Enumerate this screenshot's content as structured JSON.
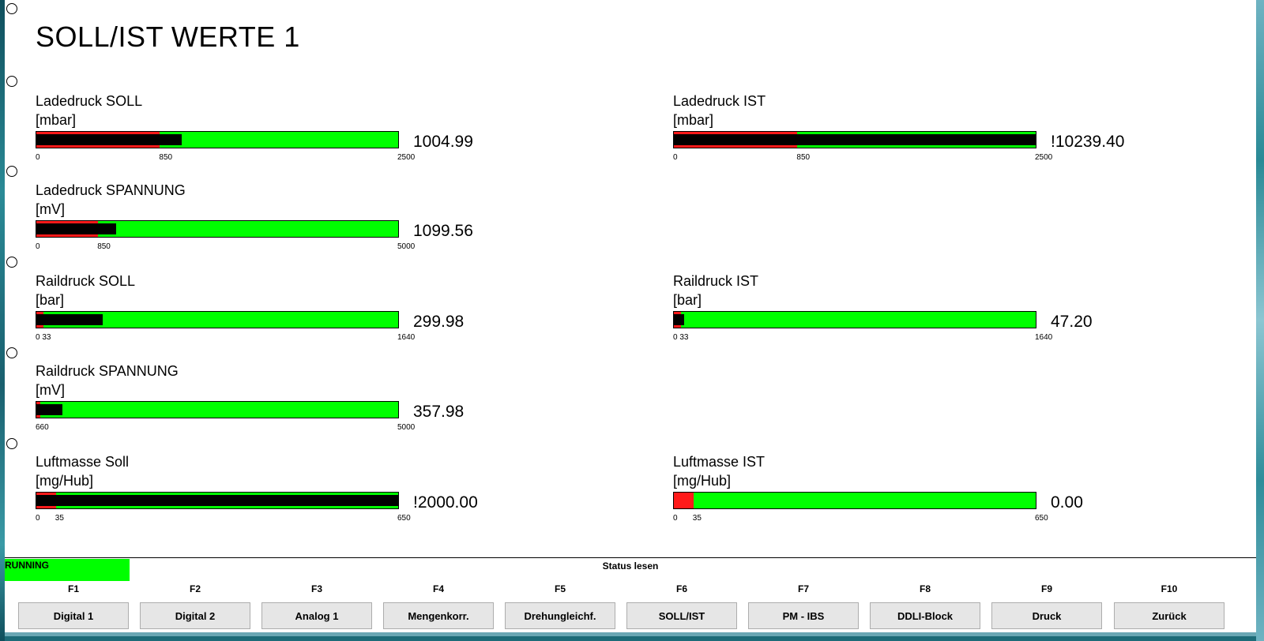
{
  "title": "SOLL/IST WERTE 1",
  "gauges": [
    {
      "label": "Ladedruck SOLL",
      "unit": "[mbar]",
      "value": "1004.99",
      "min": 0,
      "threshold": 850,
      "max": 2500,
      "level": 1004.99,
      "ticks": {
        "min": "0",
        "threshold": "850",
        "max": "2500"
      }
    },
    {
      "label": "Ladedruck IST",
      "unit": "[mbar]",
      "value": "!10239.40",
      "min": 0,
      "threshold": 850,
      "max": 2500,
      "level": 2500,
      "ticks": {
        "min": "0",
        "threshold": "850",
        "max": "2500"
      }
    },
    {
      "label": "Ladedruck SPANNUNG",
      "unit": "[mV]",
      "value": "1099.56",
      "min": 0,
      "threshold": 850,
      "max": 5000,
      "level": 1099.56,
      "ticks": {
        "min": "0",
        "threshold": "850",
        "max": "5000"
      }
    },
    {
      "label": "Raildruck SOLL",
      "unit": "[bar]",
      "value": "299.98",
      "min": 0,
      "threshold": 33,
      "max": 1640,
      "level": 299.98,
      "ticks": {
        "min": "0 33",
        "threshold": "",
        "max": "1640"
      }
    },
    {
      "label": "Raildruck IST",
      "unit": "[bar]",
      "value": "47.20",
      "min": 0,
      "threshold": 33,
      "max": 1640,
      "level": 47.2,
      "ticks": {
        "min": "0 33",
        "threshold": "",
        "max": "1640"
      }
    },
    {
      "label": "Raildruck SPANNUNG",
      "unit": "[mV]",
      "value": "357.98",
      "min": 0,
      "threshold": 60,
      "max": 5000,
      "level": 357.98,
      "ticks": {
        "min": "660",
        "threshold": "",
        "max": "5000"
      }
    },
    {
      "label": "Luftmasse Soll",
      "unit": "[mg/Hub]",
      "value": "!2000.00",
      "min": 0,
      "threshold": 35,
      "max": 650,
      "level": 650,
      "ticks": {
        "min": "0",
        "threshold": "35",
        "max": "650"
      }
    },
    {
      "label": "Luftmasse IST",
      "unit": "[mg/Hub]",
      "value": "0.00",
      "min": 0,
      "threshold": 35,
      "max": 650,
      "level": 0,
      "ticks": {
        "min": "0",
        "threshold": "35",
        "max": "650"
      }
    }
  ],
  "status": {
    "state": "RUNNING",
    "caption": "Status lesen"
  },
  "function_keys": [
    {
      "key": "F1",
      "label": "Digital 1"
    },
    {
      "key": "F2",
      "label": "Digital 2"
    },
    {
      "key": "F3",
      "label": "Analog 1"
    },
    {
      "key": "F4",
      "label": "Mengenkorr."
    },
    {
      "key": "F5",
      "label": "Drehungleichf."
    },
    {
      "key": "F6",
      "label": "SOLL/IST"
    },
    {
      "key": "F7",
      "label": "PM - IBS"
    },
    {
      "key": "F8",
      "label": "DDLI-Block"
    },
    {
      "key": "F9",
      "label": "Druck"
    },
    {
      "key": "F10",
      "label": "Zurück"
    }
  ],
  "colors": {
    "bar_fill": "#00ff00",
    "threshold_zone": "#ff1a1a",
    "level": "#000000",
    "running": "#00ff00"
  }
}
